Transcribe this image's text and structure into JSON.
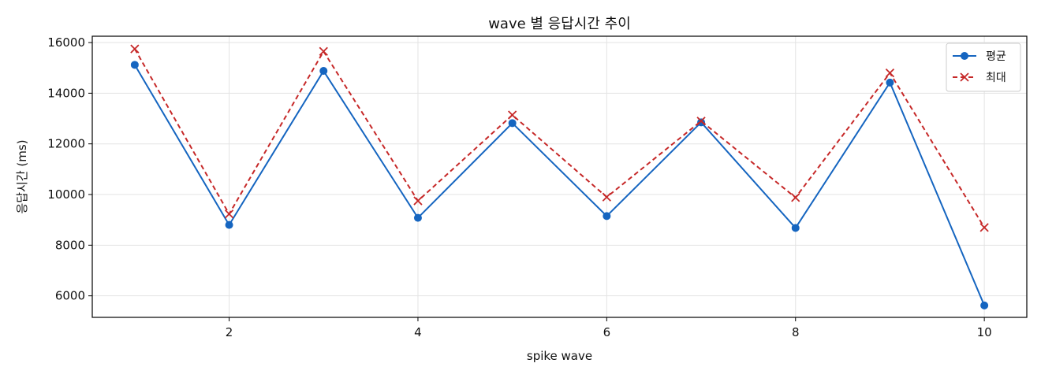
{
  "chart_data": {
    "type": "line",
    "title": "wave 별 응답시간 추이",
    "xlabel": "spike wave",
    "ylabel": "응답시간 (ms)",
    "x": [
      1,
      2,
      3,
      4,
      5,
      6,
      7,
      8,
      9,
      10
    ],
    "xlim": [
      0.55,
      10.45
    ],
    "ylim": [
      5150,
      16250
    ],
    "xticks": [
      2,
      4,
      6,
      8,
      10
    ],
    "yticks": [
      6000,
      8000,
      10000,
      12000,
      14000,
      16000
    ],
    "grid": true,
    "legend_position": "top-right",
    "series": [
      {
        "name": "평균",
        "color": "#1565c0",
        "marker": "circle",
        "line_style": "solid",
        "values": [
          15120,
          8800,
          14880,
          9080,
          12820,
          9150,
          12850,
          8680,
          14420,
          5620
        ]
      },
      {
        "name": "최대",
        "color": "#c62828",
        "marker": "x",
        "line_style": "dashed",
        "values": [
          15750,
          9230,
          15650,
          9750,
          13140,
          9900,
          12900,
          9880,
          14800,
          8700
        ]
      }
    ]
  }
}
